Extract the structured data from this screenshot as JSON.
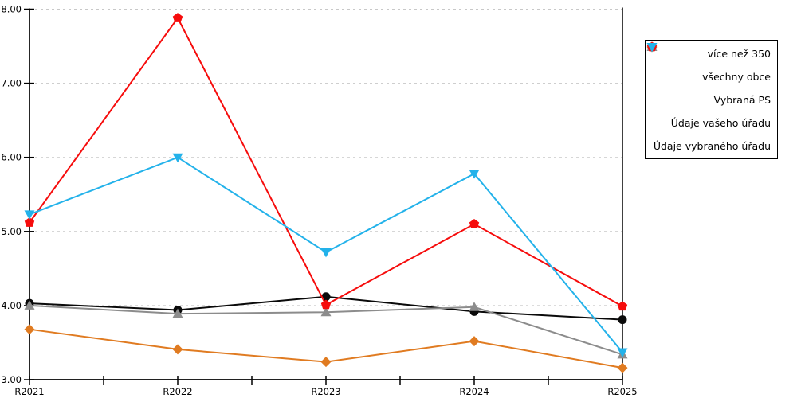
{
  "chart_data": {
    "type": "line",
    "title": "",
    "xlabel": "",
    "ylabel": "",
    "categories": [
      "R2021",
      "R2022",
      "R2023",
      "R2024",
      "R2025"
    ],
    "series": [
      {
        "name": "více než 350",
        "color": "#E07B21",
        "marker": "diamond",
        "values": [
          3.68,
          3.41,
          3.24,
          3.52,
          3.16
        ]
      },
      {
        "name": "všechny obce",
        "color": "#0A0A0A",
        "marker": "circle",
        "values": [
          4.03,
          3.94,
          4.12,
          3.92,
          3.81
        ]
      },
      {
        "name": "Vybraná PS",
        "color": "#8C8C8C",
        "marker": "triangle-up",
        "values": [
          4.0,
          3.89,
          3.91,
          3.98,
          3.34
        ]
      },
      {
        "name": "Údaje vašeho úřadu",
        "color": "#F60C0C",
        "marker": "pentagon",
        "values": [
          5.12,
          7.88,
          4.01,
          5.1,
          3.99
        ]
      },
      {
        "name": "Údaje vybraného úřadu",
        "color": "#23B2EA",
        "marker": "triangle-down",
        "values": [
          5.23,
          6.0,
          4.72,
          5.78,
          3.37
        ]
      }
    ],
    "ylim": [
      3,
      8
    ],
    "y_ticks": [
      3,
      4,
      5,
      6,
      7,
      8
    ],
    "y_tick_labels": [
      "3.00",
      "4.00",
      "5.00",
      "6.00",
      "7.00",
      "8.00"
    ],
    "grid": "horizontal-dashed",
    "grid_color": "#C8C8C8",
    "axis_color": "#000000",
    "legend_position": "right"
  }
}
